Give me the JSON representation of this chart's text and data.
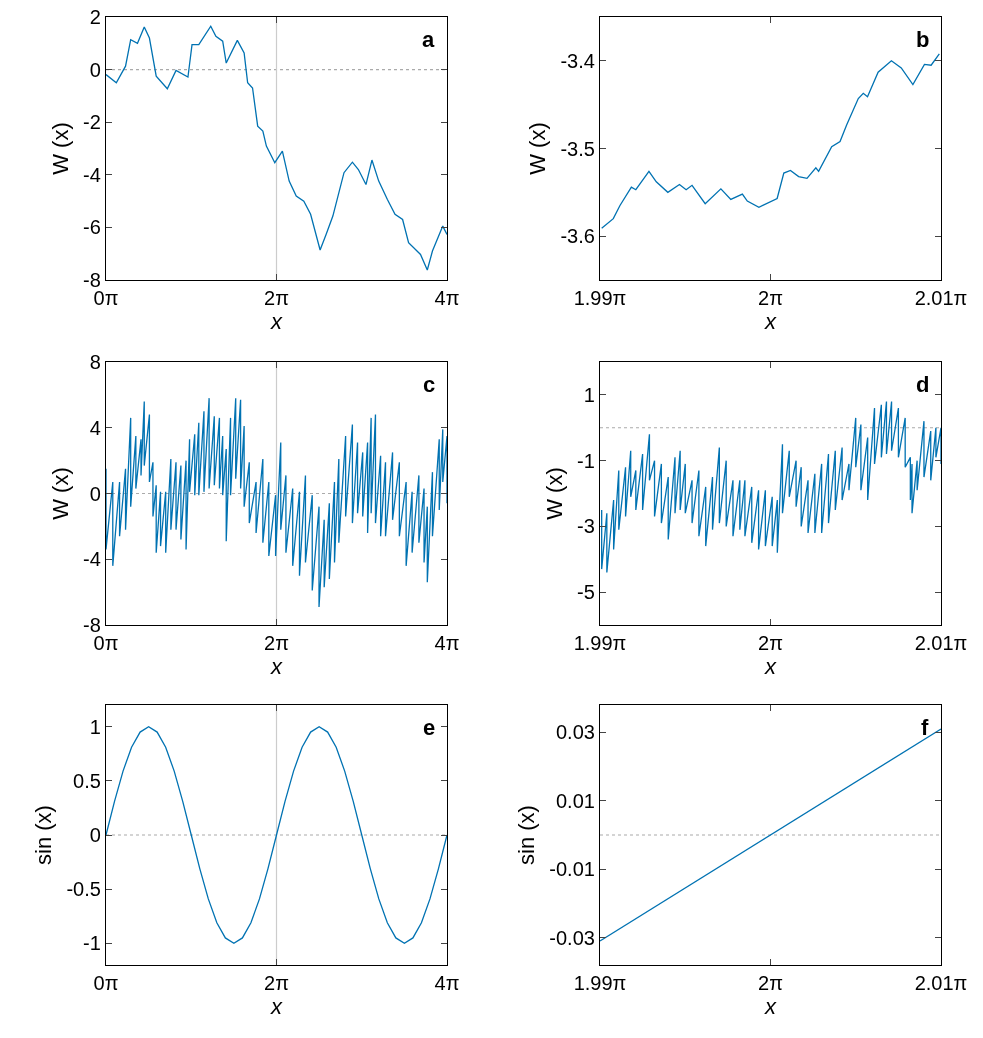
{
  "chart_data": [
    {
      "type": "line",
      "xlabel": "x",
      "ylabel": "W (x)",
      "annotations": [
        "a"
      ],
      "xlim": [
        0,
        12.566
      ],
      "ylim": [
        -8,
        2
      ],
      "xticks": [
        {
          "value": 0,
          "label": "0π"
        },
        {
          "value": 6.283,
          "label": "2π"
        },
        {
          "value": 12.566,
          "label": "4π"
        }
      ],
      "yticks": [
        -8,
        -6,
        -4,
        -2,
        0,
        2
      ],
      "ref_lines": [
        {
          "axis": "y",
          "value": 0,
          "color": "#aaaaaa",
          "line_style": "dotted"
        },
        {
          "axis": "x",
          "value": 6.283,
          "color": "#cccccc",
          "line_style": "solid"
        }
      ],
      "x": [
        0,
        0.38,
        0.72,
        0.91,
        1.16,
        1.41,
        1.6,
        1.85,
        2.26,
        2.58,
        3.02,
        3.17,
        3.42,
        3.86,
        4.05,
        4.3,
        4.43,
        4.84,
        5.09,
        5.22,
        5.4,
        5.59,
        5.78,
        5.91,
        6.22,
        6.5,
        6.75,
        7.01,
        7.29,
        7.54,
        7.89,
        8.11,
        8.36,
        8.77,
        9.08,
        9.3,
        9.58,
        9.8,
        10.05,
        10.37,
        10.65,
        10.93,
        11.15,
        11.59,
        11.84,
        12.03,
        12.41,
        12.566
      ],
      "series": [
        {
          "color": "#0072b2",
          "values": [
            -0.19,
            -0.5,
            0.13,
            1.14,
            1.0,
            1.62,
            1.2,
            -0.25,
            -0.73,
            -0.03,
            -0.28,
            0.95,
            0.95,
            1.65,
            1.27,
            1.08,
            0.25,
            1.11,
            0.63,
            -0.5,
            -0.7,
            -2.15,
            -2.34,
            -2.91,
            -3.54,
            -3.1,
            -4.24,
            -4.81,
            -5.0,
            -5.5,
            -6.86,
            -6.27,
            -5.57,
            -3.92,
            -3.52,
            -3.8,
            -4.37,
            -3.44,
            -4.24,
            -4.94,
            -5.5,
            -5.7,
            -6.58,
            -7.03,
            -7.62,
            -6.9,
            -5.95,
            -6.27
          ]
        }
      ]
    },
    {
      "type": "line",
      "xlabel": "x",
      "ylabel": "W (x)",
      "annotations": [
        "b"
      ],
      "xlim": [
        6.25177,
        6.3146
      ],
      "ylim": [
        -3.65,
        -3.35
      ],
      "xticks": [
        {
          "value": 6.25177,
          "label": "1.99π"
        },
        {
          "value": 6.28319,
          "label": "2π"
        },
        {
          "value": 6.3146,
          "label": "2.01π"
        }
      ],
      "yticks": [
        -3.6,
        -3.5,
        -3.4
      ],
      "x": [
        6.25208,
        6.25422,
        6.25545,
        6.25755,
        6.25837,
        6.26079,
        6.26214,
        6.26427,
        6.26641,
        6.26764,
        6.26873,
        6.27115,
        6.27404,
        6.27587,
        6.278,
        6.27891,
        6.28105,
        6.28441,
        6.28564,
        6.28686,
        6.28837,
        6.28991,
        6.29154,
        6.29205,
        6.29446,
        6.296,
        6.29723,
        6.29936,
        6.30028,
        6.30106,
        6.30301,
        6.30546,
        6.30728,
        6.30942,
        6.31155,
        6.31278,
        6.31429
      ],
      "series": [
        {
          "color": "#0072b2",
          "values": [
            -3.591,
            -3.58,
            -3.565,
            -3.544,
            -3.547,
            -3.526,
            -3.538,
            -3.55,
            -3.541,
            -3.547,
            -3.542,
            -3.563,
            -3.546,
            -3.558,
            -3.552,
            -3.56,
            -3.567,
            -3.557,
            -3.528,
            -3.525,
            -3.532,
            -3.534,
            -3.522,
            -3.526,
            -3.498,
            -3.492,
            -3.473,
            -3.443,
            -3.437,
            -3.441,
            -3.413,
            -3.4,
            -3.408,
            -3.427,
            -3.404,
            -3.405,
            -3.392
          ]
        }
      ]
    },
    {
      "type": "line",
      "xlabel": "x",
      "ylabel": "W (x)",
      "annotations": [
        "c"
      ],
      "xlim": [
        0,
        12.566
      ],
      "ylim": [
        -8,
        8
      ],
      "xticks": [
        {
          "value": 0,
          "label": "0π"
        },
        {
          "value": 6.283,
          "label": "2π"
        },
        {
          "value": 12.566,
          "label": "4π"
        }
      ],
      "yticks": [
        -8,
        -4,
        0,
        4,
        8
      ],
      "ref_lines": [
        {
          "axis": "y",
          "value": 0,
          "color": "#aaaaaa",
          "line_style": "dotted"
        },
        {
          "axis": "x",
          "value": 6.283,
          "color": "#cccccc",
          "line_style": "solid"
        }
      ],
      "x": [
        0,
        0,
        0.25,
        0.25,
        0.5,
        0.5,
        0.72,
        0.72,
        0.91,
        0.91,
        1.1,
        1.1,
        1.29,
        1.29,
        1.41,
        1.41,
        1.6,
        1.6,
        1.73,
        1.73,
        1.85,
        1.85,
        2.01,
        2.01,
        2.2,
        2.2,
        2.39,
        2.39,
        2.58,
        2.58,
        2.76,
        2.76,
        2.95,
        2.95,
        3.08,
        3.08,
        3.27,
        3.27,
        3.42,
        3.42,
        3.61,
        3.61,
        3.8,
        3.8,
        3.99,
        3.99,
        4.18,
        4.18,
        4.3,
        4.3,
        4.43,
        4.43,
        4.59,
        4.59,
        4.78,
        4.78,
        4.96,
        4.96,
        5.09,
        5.09,
        5.28,
        5.28,
        5.53,
        5.53,
        5.78,
        5.78,
        6.0,
        6.0,
        6.25,
        6.25,
        6.44,
        6.44,
        6.63,
        6.63,
        6.88,
        6.88,
        7.13,
        7.13,
        7.35,
        7.35,
        7.6,
        7.6,
        7.85,
        7.85,
        8.04,
        8.04,
        8.23,
        8.23,
        8.42,
        8.42,
        8.58,
        8.58,
        8.83,
        8.83,
        9.08,
        9.08,
        9.27,
        9.27,
        9.46,
        9.46,
        9.64,
        9.64,
        9.77,
        9.77,
        9.93,
        9.93,
        10.12,
        10.12,
        10.3,
        10.3,
        10.56,
        10.56,
        10.81,
        10.81,
        11.06,
        11.06,
        11.28,
        11.28,
        11.53,
        11.53,
        11.72,
        11.72,
        11.84,
        11.84,
        12.03,
        12.03,
        12.28,
        12.28,
        12.41,
        12.41,
        12.566,
        12.566
      ],
      "series": [
        {
          "color": "#0072b2",
          "values": [
            1.5,
            -3.4,
            0.7,
            -4.4,
            0.7,
            -2.6,
            1.5,
            -2.2,
            4.6,
            -0.8,
            3.5,
            0.3,
            3.3,
            1.1,
            5.6,
            1.7,
            4.8,
            0.7,
            1.9,
            -1.4,
            0.5,
            -3.6,
            0.1,
            -3.2,
            0.1,
            -3.6,
            2.1,
            -2.2,
            1.9,
            -2.2,
            1.7,
            -2.8,
            2.0,
            -3.4,
            3.3,
            0.1,
            3.6,
            -0.1,
            4.3,
            -0.1,
            5.0,
            0.1,
            5.8,
            0.3,
            4.7,
            0.5,
            4.6,
            0.3,
            3.5,
            -0.1,
            2.7,
            -2.9,
            4.6,
            -0.1,
            5.8,
            0.9,
            5.7,
            0.3,
            4.1,
            -0.8,
            1.9,
            -1.8,
            0.7,
            -2.4,
            2.1,
            -3.0,
            0.7,
            -3.8,
            -0.1,
            -3.8,
            3.1,
            -2.2,
            1.1,
            -3.6,
            0.3,
            -4.4,
            0.1,
            -5.0,
            1.1,
            -4.2,
            -0.1,
            -5.9,
            -0.8,
            -6.9,
            -1.6,
            -5.7,
            -0.6,
            -5.2,
            0.7,
            -4.2,
            2.1,
            -3.0,
            3.5,
            -1.4,
            4.2,
            -1.8,
            3.1,
            -1.2,
            2.5,
            -1.4,
            3.1,
            -2.4,
            4.6,
            -1.2,
            4.8,
            -1.8,
            2.3,
            -2.6,
            1.9,
            -2.6,
            2.5,
            -1.6,
            1.9,
            -2.6,
            0.7,
            -4.4,
            0.1,
            -3.6,
            1.1,
            -3.0,
            0.3,
            -4.2,
            -0.8,
            -5.4,
            1.3,
            -2.6,
            3.3,
            -1.0,
            3.9,
            0.7,
            3.5,
            -0.6
          ]
        }
      ]
    },
    {
      "type": "line",
      "xlabel": "x",
      "ylabel": "W (x)",
      "annotations": [
        "d"
      ],
      "xlim": [
        6.25177,
        6.3146
      ],
      "ylim": [
        -6,
        2
      ],
      "xticks": [
        {
          "value": 6.25177,
          "label": "1.99π"
        },
        {
          "value": 6.28319,
          "label": "2π"
        },
        {
          "value": 6.3146,
          "label": "2.01π"
        }
      ],
      "yticks": [
        -5,
        -3,
        -1,
        1
      ],
      "ref_lines": [
        {
          "axis": "y",
          "value": 0,
          "color": "#aaaaaa",
          "line_style": "dotted"
        }
      ],
      "x": [
        6.25208,
        6.25208,
        6.25303,
        6.25303,
        6.25428,
        6.25428,
        6.25523,
        6.25523,
        6.25648,
        6.25648,
        6.25743,
        6.25743,
        6.25837,
        6.25837,
        6.25962,
        6.25962,
        6.26088,
        6.26088,
        6.26182,
        6.26182,
        6.26308,
        6.26308,
        6.26434,
        6.26434,
        6.26559,
        6.26559,
        6.26654,
        6.26654,
        6.26748,
        6.26748,
        6.26873,
        6.26873,
        6.26999,
        6.26999,
        6.27125,
        6.27125,
        6.2725,
        6.2725,
        6.27376,
        6.27376,
        6.27502,
        6.27502,
        6.27627,
        6.27627,
        6.27753,
        6.27753,
        6.27847,
        6.27847,
        6.27973,
        6.27973,
        6.28099,
        6.28099,
        6.28224,
        6.28224,
        6.2835,
        6.2835,
        6.28444,
        6.28444,
        6.28539,
        6.28539,
        6.28664,
        6.28664,
        6.2879,
        6.2879,
        6.28884,
        6.28884,
        6.2901,
        6.2901,
        6.29136,
        6.29136,
        6.29261,
        6.29261,
        6.29387,
        6.29387,
        6.29512,
        6.29512,
        6.29638,
        6.29638,
        6.29764,
        6.29764,
        6.29889,
        6.29889,
        6.29984,
        6.29984,
        6.30109,
        6.30109,
        6.30235,
        6.30235,
        6.30361,
        6.30361,
        6.30455,
        6.30455,
        6.30549,
        6.30549,
        6.30675,
        6.30675,
        6.308,
        6.308,
        6.30895,
        6.30895,
        6.30926,
        6.30926,
        6.3102,
        6.3102,
        6.31146,
        6.31146,
        6.31271,
        6.31271,
        6.31366,
        6.31366,
        6.3146,
        6.3146
      ],
      "series": [
        {
          "color": "#0072b2",
          "values": [
            -2.5,
            -4.3,
            -2.6,
            -4.4,
            -2.2,
            -3.7,
            -1.3,
            -3.1,
            -1.2,
            -2.7,
            -0.7,
            -2.1,
            -1.3,
            -2.5,
            -0.8,
            -2.5,
            -0.2,
            -1.6,
            -1.0,
            -2.7,
            -1.1,
            -2.9,
            -1.5,
            -3.4,
            -0.9,
            -2.6,
            -0.7,
            -2.5,
            -1.1,
            -2.6,
            -1.6,
            -2.9,
            -1.3,
            -3.3,
            -1.8,
            -3.6,
            -1.5,
            -3.1,
            -0.6,
            -2.9,
            -1.0,
            -3.0,
            -1.6,
            -3.3,
            -1.6,
            -3.1,
            -1.6,
            -3.3,
            -1.8,
            -3.5,
            -1.9,
            -3.7,
            -1.9,
            -3.6,
            -2.1,
            -3.6,
            -2.2,
            -3.8,
            -0.5,
            -2.6,
            -0.7,
            -2.1,
            -1.0,
            -2.4,
            -1.2,
            -3.0,
            -1.6,
            -3.2,
            -1.4,
            -3.2,
            -1.1,
            -3.2,
            -0.8,
            -2.9,
            -0.7,
            -2.5,
            -0.6,
            -2.2,
            -1.1,
            -1.9,
            0.3,
            -1.2,
            0.1,
            -1.9,
            -0.3,
            -2.2,
            0.6,
            -1.1,
            0.7,
            -0.9,
            0.8,
            -0.8,
            0.8,
            -0.7,
            0.6,
            -0.9,
            0.3,
            -1.2,
            -0.9,
            -2.2,
            -1.1,
            -2.6,
            -1.0,
            -1.9,
            0.2,
            -1.5,
            -0.1,
            -1.6,
            0.0,
            -0.9,
            0.0,
            -1.1
          ]
        }
      ]
    },
    {
      "type": "line",
      "xlabel": "x",
      "ylabel": "sin (x)",
      "annotations": [
        "e"
      ],
      "xlim": [
        0,
        12.566
      ],
      "ylim": [
        -1.2,
        1.2
      ],
      "xticks": [
        {
          "value": 0,
          "label": "0π"
        },
        {
          "value": 6.283,
          "label": "2π"
        },
        {
          "value": 12.566,
          "label": "4π"
        }
      ],
      "yticks": [
        -1,
        -0.5,
        0,
        0.5,
        1
      ],
      "ref_lines": [
        {
          "axis": "y",
          "value": 0,
          "color": "#aaaaaa",
          "line_style": "dotted"
        },
        {
          "axis": "x",
          "value": 6.283,
          "color": "#cccccc",
          "line_style": "solid"
        }
      ],
      "x": [
        0,
        0.314,
        0.628,
        0.942,
        1.257,
        1.571,
        1.885,
        2.199,
        2.513,
        2.827,
        3.142,
        3.456,
        3.77,
        4.084,
        4.398,
        4.712,
        5.027,
        5.341,
        5.655,
        5.969,
        6.283,
        6.597,
        6.912,
        7.226,
        7.54,
        7.854,
        8.168,
        8.482,
        8.796,
        9.111,
        9.425,
        9.739,
        10.053,
        10.367,
        10.681,
        10.996,
        11.31,
        11.624,
        11.938,
        12.252,
        12.566
      ],
      "series": [
        {
          "color": "#0072b2",
          "values": [
            0,
            0.31,
            0.59,
            0.81,
            0.95,
            1,
            0.95,
            0.81,
            0.59,
            0.31,
            0,
            -0.31,
            -0.59,
            -0.81,
            -0.95,
            -1,
            -0.95,
            -0.81,
            -0.59,
            -0.31,
            0,
            0.31,
            0.59,
            0.81,
            0.95,
            1,
            0.95,
            0.81,
            0.59,
            0.31,
            0,
            -0.31,
            -0.59,
            -0.81,
            -0.95,
            -1,
            -0.95,
            -0.81,
            -0.59,
            -0.31,
            0
          ]
        }
      ]
    },
    {
      "type": "line",
      "xlabel": "x",
      "ylabel": "sin (x)",
      "annotations": [
        "f"
      ],
      "xlim": [
        6.25177,
        6.3146
      ],
      "ylim": [
        -0.038,
        0.038
      ],
      "xticks": [
        {
          "value": 6.25177,
          "label": "1.99π"
        },
        {
          "value": 6.28319,
          "label": "2π"
        },
        {
          "value": 6.3146,
          "label": "2.01π"
        }
      ],
      "yticks": [
        -0.03,
        -0.01,
        0.01,
        0.03
      ],
      "ref_lines": [
        {
          "axis": "y",
          "value": 0,
          "color": "#aaaaaa",
          "line_style": "dotted"
        }
      ],
      "x": [
        6.25177,
        6.3146
      ],
      "series": [
        {
          "color": "#0072b2",
          "values": [
            -0.031,
            0.031
          ]
        }
      ]
    }
  ]
}
